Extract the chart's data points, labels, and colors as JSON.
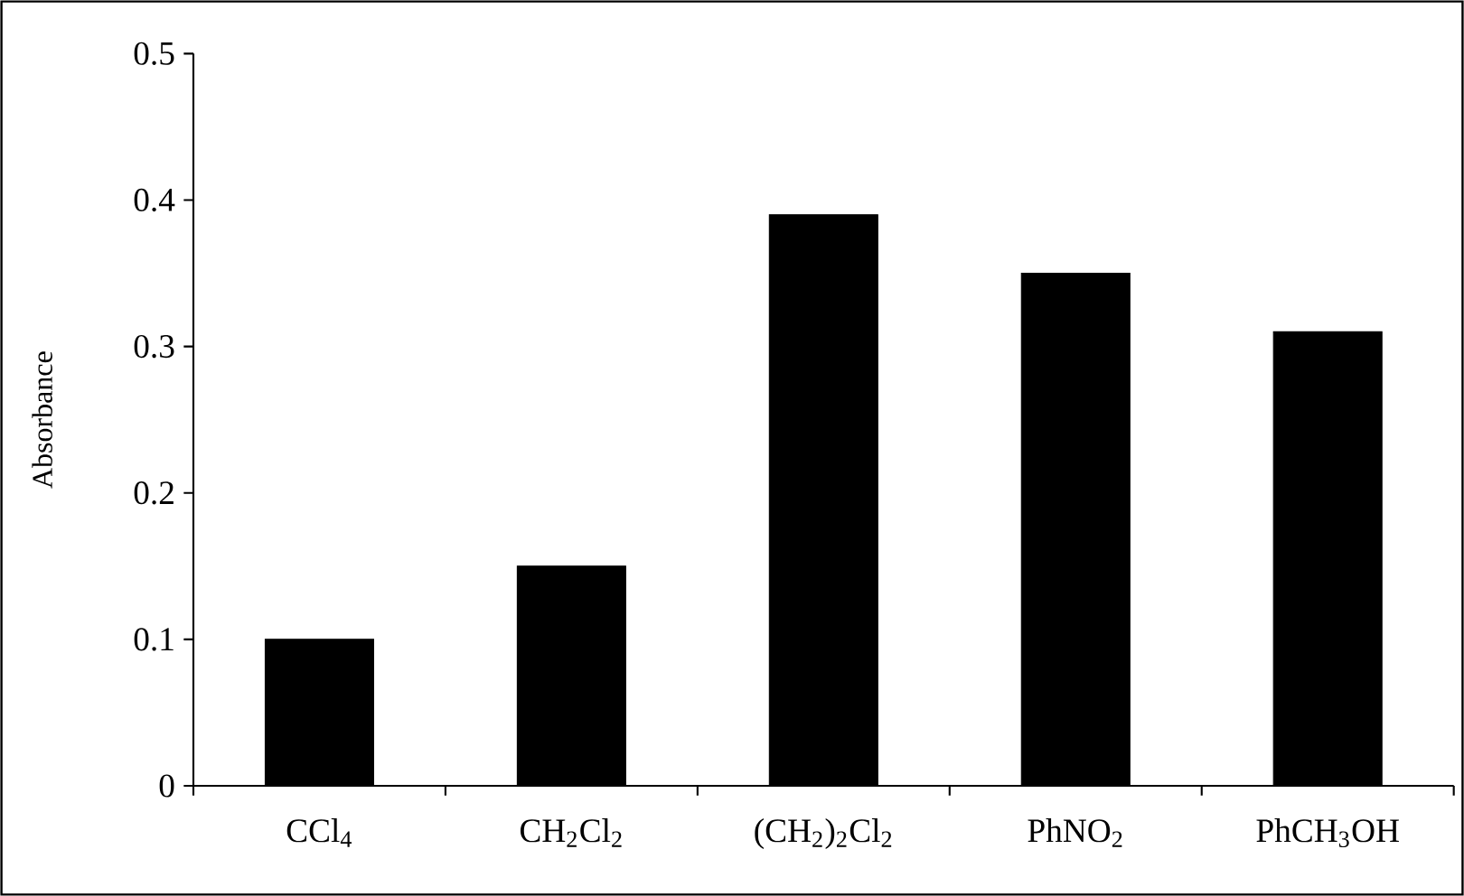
{
  "chart_data": {
    "type": "bar",
    "ylabel": "Absorbance",
    "categories": [
      "CCl$_{4}$",
      "CH$_{2}$Cl$_{2}$",
      "(CH$_{2}$)$_{2}$Cl$_{2}$",
      "PhNO$_{2}$",
      "PhCH$_{3}$OH"
    ],
    "values": [
      0.1,
      0.15,
      0.39,
      0.35,
      0.31
    ],
    "color": "#000000",
    "ylim": [
      0,
      0.5
    ],
    "yticks": [
      0,
      0.1,
      0.2,
      0.3,
      0.4,
      0.5
    ],
    "grid": false
  }
}
